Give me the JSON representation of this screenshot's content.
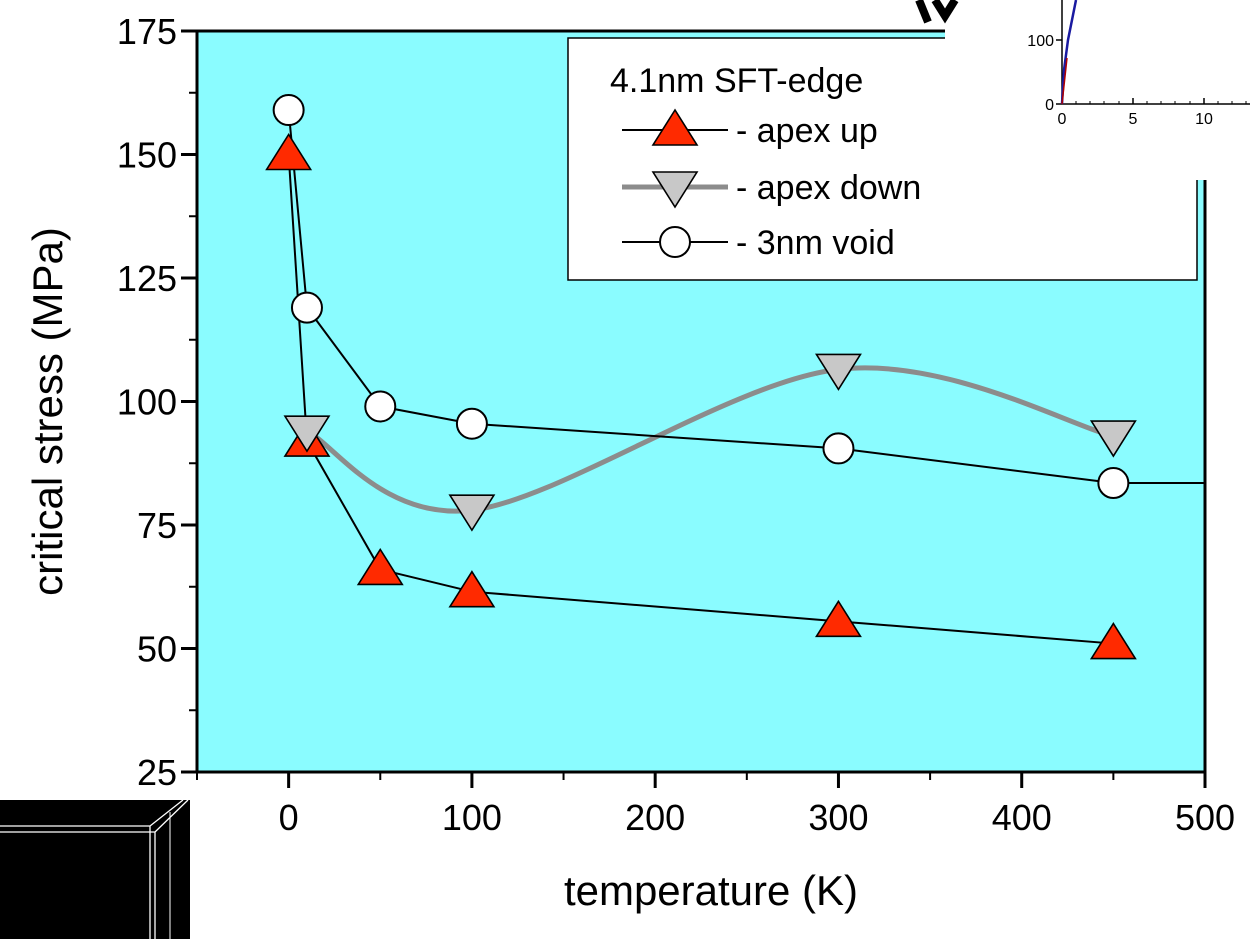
{
  "colors": {
    "plot_background": "#8afcff",
    "apex_up_fill": "#ff2a00",
    "apex_down_fill": "#c8c8c8",
    "apex_down_line": "#8c8c8c",
    "void_fill": "#ffffff",
    "line": "#000000",
    "inset_line": "#1a1aa0"
  },
  "chart_data": [
    {
      "type": "line",
      "title": "",
      "xlabel": "temperature (K)",
      "ylabel": "critical stress (MPa)",
      "xlim": [
        -50,
        500
      ],
      "ylim": [
        25,
        175
      ],
      "xticks": [
        0,
        100,
        200,
        300,
        400,
        500
      ],
      "yticks": [
        25,
        50,
        75,
        100,
        125,
        150,
        175
      ],
      "grid": false,
      "legend_position": "top-right",
      "legend_title": "4.1nm SFT-edge",
      "series": [
        {
          "name": "- apex up",
          "marker": "triangle-up",
          "line_style": "straight",
          "x": [
            0,
            10,
            50,
            100,
            300,
            450
          ],
          "y": [
            150,
            92,
            66,
            61.5,
            55.5,
            51
          ]
        },
        {
          "name": "- apex down",
          "marker": "triangle-down",
          "line_style": "smooth",
          "x": [
            10,
            100,
            300,
            450
          ],
          "y": [
            94,
            78,
            106.5,
            93
          ]
        },
        {
          "name": "- 3nm void",
          "marker": "circle",
          "line_style": "straight",
          "x": [
            0,
            10,
            50,
            100,
            300,
            450
          ],
          "y": [
            159,
            119,
            99,
            95.5,
            90.5,
            83.5
          ],
          "extends_to_x": 500
        }
      ]
    },
    {
      "type": "line",
      "title": "",
      "note": "partially visible inset in top-right corner",
      "yticks": [
        0,
        100
      ],
      "xticks": [
        0,
        5,
        10
      ]
    }
  ]
}
